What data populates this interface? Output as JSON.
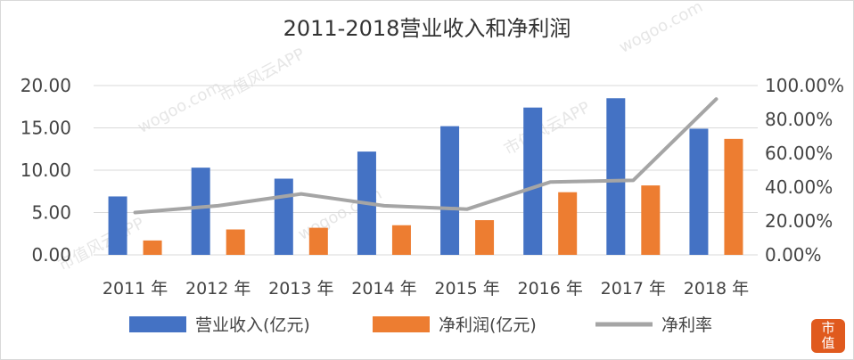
{
  "title": "2011-2018营业收入和净利润",
  "chart_data": {
    "type": "bar",
    "categories": [
      "2011 年",
      "2012 年",
      "2013 年",
      "2014 年",
      "2015 年",
      "2016 年",
      "2017 年",
      "2018 年"
    ],
    "series": [
      {
        "name": "营业收入(亿元)",
        "type": "bar",
        "axis": "left",
        "color": "#4472c4",
        "values": [
          6.9,
          10.3,
          9.0,
          12.2,
          15.2,
          17.4,
          18.5,
          14.9
        ]
      },
      {
        "name": "净利润(亿元)",
        "type": "bar",
        "axis": "left",
        "color": "#ed7d31",
        "values": [
          1.7,
          3.0,
          3.2,
          3.5,
          4.1,
          7.4,
          8.2,
          13.7
        ]
      },
      {
        "name": "净利率",
        "type": "line",
        "axis": "right",
        "color": "#a5a5a5",
        "values": [
          0.25,
          0.29,
          0.36,
          0.29,
          0.27,
          0.43,
          0.44,
          0.92
        ]
      }
    ],
    "ylim_left": [
      0,
      20
    ],
    "ylim_right": [
      0,
      1
    ],
    "yticks_left": [
      "0.00",
      "5.00",
      "10.00",
      "15.00",
      "20.00"
    ],
    "yticks_right": [
      "0.00%",
      "20.00%",
      "40.00%",
      "60.00%",
      "80.00%",
      "100.00%"
    ],
    "legend_position": "bottom",
    "grid": "horizontal"
  },
  "watermark": {
    "text_a": "wogoo.com",
    "text_b": "市值风云APP"
  },
  "badge": {
    "line1": "市",
    "line2": "值"
  }
}
